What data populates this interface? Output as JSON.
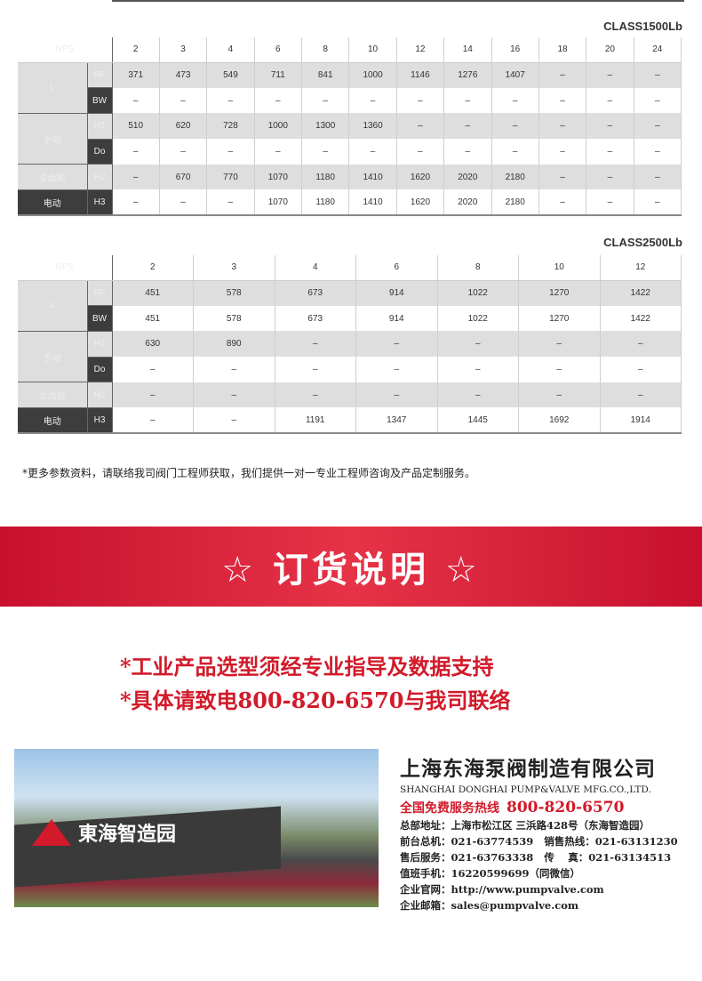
{
  "table1": {
    "class_label": "CLASS1500Lb",
    "header": "NPS",
    "sizes": [
      "2",
      "3",
      "4",
      "6",
      "8",
      "10",
      "12",
      "14",
      "16",
      "18",
      "20",
      "24"
    ],
    "rows": [
      {
        "group": "L",
        "sub": "RF",
        "values": [
          "371",
          "473",
          "549",
          "711",
          "841",
          "1000",
          "1146",
          "1276",
          "1407",
          "–",
          "–",
          "–"
        ]
      },
      {
        "group": "",
        "sub": "BW",
        "values": [
          "–",
          "–",
          "–",
          "–",
          "–",
          "–",
          "–",
          "–",
          "–",
          "–",
          "–",
          "–"
        ]
      },
      {
        "group": "手动",
        "sub": "H1",
        "values": [
          "510",
          "620",
          "728",
          "1000",
          "1300",
          "1360",
          "–",
          "–",
          "–",
          "–",
          "–",
          "–"
        ]
      },
      {
        "group": "",
        "sub": "Do",
        "values": [
          "–",
          "–",
          "–",
          "–",
          "–",
          "–",
          "–",
          "–",
          "–",
          "–",
          "–",
          "–"
        ]
      },
      {
        "group": "伞齿轮",
        "sub": "H2",
        "values": [
          "–",
          "670",
          "770",
          "1070",
          "1180",
          "1410",
          "1620",
          "2020",
          "2180",
          "–",
          "–",
          "–"
        ]
      },
      {
        "group": "电动",
        "sub": "H3",
        "values": [
          "–",
          "–",
          "–",
          "1070",
          "1180",
          "1410",
          "1620",
          "2020",
          "2180",
          "–",
          "–",
          "–"
        ]
      }
    ]
  },
  "table2": {
    "class_label": "CLASS2500Lb",
    "header": "NPS",
    "sizes": [
      "2",
      "3",
      "4",
      "6",
      "8",
      "10",
      "12"
    ],
    "rows": [
      {
        "group": "L",
        "sub": "RF",
        "values": [
          "451",
          "578",
          "673",
          "914",
          "1022",
          "1270",
          "1422"
        ]
      },
      {
        "group": "",
        "sub": "BW",
        "values": [
          "451",
          "578",
          "673",
          "914",
          "1022",
          "1270",
          "1422"
        ]
      },
      {
        "group": "手动",
        "sub": "H1",
        "values": [
          "630",
          "890",
          "–",
          "–",
          "–",
          "–",
          "–"
        ]
      },
      {
        "group": "",
        "sub": "Do",
        "values": [
          "–",
          "–",
          "–",
          "–",
          "–",
          "–",
          "–"
        ]
      },
      {
        "group": "伞齿轮",
        "sub": "H2",
        "values": [
          "–",
          "–",
          "–",
          "–",
          "–",
          "–",
          "–"
        ]
      },
      {
        "group": "电动",
        "sub": "H3",
        "values": [
          "–",
          "–",
          "1191",
          "1347",
          "1445",
          "1692",
          "1914"
        ]
      }
    ]
  },
  "note": "*更多参数资料，请联络我司阀门工程师获取，我们提供一对一专业工程师咨询及产品定制服务。",
  "banner": {
    "title": "☆ 订货说明 ☆"
  },
  "ordering": {
    "line1": "*工业产品选型须经专业指导及数据支持",
    "line2": "*具体请致电800-820-6570与我司联络"
  },
  "photo": {
    "sign": "東海智造园"
  },
  "company": {
    "name_cn": "上海东海泵阀制造有限公司",
    "name_en": "SHANGHAI DONGHAI PUMP&VALVE MFG.CO.,LTD.",
    "hotline_label": "全国免费服务热线",
    "hotline": "800-820-6570",
    "lines": [
      "总部地址：上海市松江区 三浜路428号（东海智造园）",
      "前台总机：021-63774539   销售热线：021-63131230",
      "售后服务：021-63763338   传　 真：021-63134513",
      "值班手机：16220599699（同微信）",
      "企业官网：http://www.pumpvalve.com",
      "企业邮箱：sales@pumpvalve.com"
    ]
  },
  "colors": {
    "accent_red": "#d21a2a",
    "header_dark": "#3d3d3d",
    "row_gray": "#dedede"
  }
}
